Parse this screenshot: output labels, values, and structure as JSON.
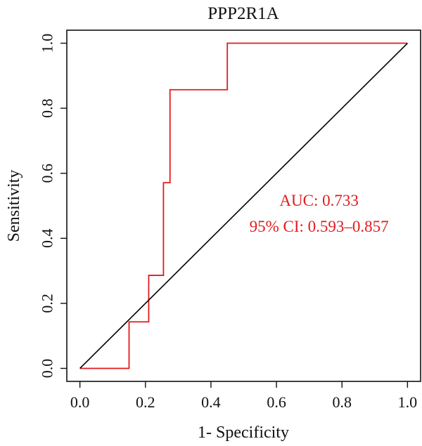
{
  "chart_data": {
    "type": "line",
    "title": "PPP2R1A",
    "xlabel": "1- Specificity",
    "ylabel": "Sensitivity",
    "xlim": [
      -0.04,
      1.04
    ],
    "ylim": [
      -0.04,
      1.04
    ],
    "x_ticks": [
      "0.0",
      "0.2",
      "0.4",
      "0.6",
      "0.8",
      "1.0"
    ],
    "y_ticks": [
      "0.0",
      "0.2",
      "0.4",
      "0.6",
      "0.8",
      "1.0"
    ],
    "grid": false,
    "series": [
      {
        "color": "#e31a1c",
        "x": [
          0,
          0.15,
          0.15,
          0.21,
          0.21,
          0.255,
          0.255,
          0.275,
          0.275,
          0.45,
          0.45,
          1.0
        ],
        "y": [
          0,
          0,
          0.143,
          0.143,
          0.286,
          0.286,
          0.571,
          0.571,
          0.857,
          0.857,
          1.0,
          1.0
        ]
      },
      {
        "color": "#000000",
        "x": [
          0,
          1
        ],
        "y": [
          0,
          1
        ]
      }
    ],
    "annotations": [
      {
        "text": "AUC: 0.733",
        "x": 0.73,
        "y": 0.5,
        "color": "#e31a1c"
      },
      {
        "text": "95% CI: 0.593–0.857",
        "x": 0.73,
        "y": 0.42,
        "color": "#e31a1c"
      }
    ]
  }
}
